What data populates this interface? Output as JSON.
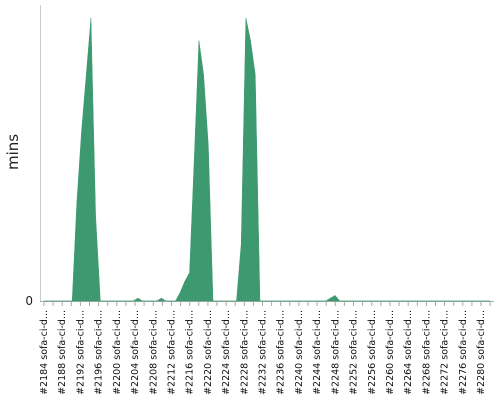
{
  "chart_data": {
    "type": "area",
    "ylabel": "mins",
    "y_tick_labels": [
      "0"
    ],
    "ylim": [
      0,
      100
    ],
    "x_tick_labels": [
      "#2184 sofa-ci-d...",
      "#2188 sofa-ci-d...",
      "#2192 sofa-ci-d...",
      "#2196 sofa-ci-d...",
      "#2200 sofa-ci-d...",
      "#2204 sofa-ci-d...",
      "#2208 sofa-ci-d...",
      "#2212 sofa-ci-d...",
      "#2216 sofa-ci-d...",
      "#2220 sofa-ci-d...",
      "#2224 sofa-ci-d...",
      "#2228 sofa-ci-d...",
      "#2232 sofa-ci-d...",
      "#2236 sofa-ci-d...",
      "#2240 sofa-ci-d...",
      "#2244 sofa-ci-d...",
      "#2248 sofa-ci-d...",
      "#2252 sofa-ci-d...",
      "#2256 sofa-ci-d...",
      "#2260 sofa-ci-d...",
      "#2264 sofa-ci-d...",
      "#2268 sofa-ci-d...",
      "#2272 sofa-ci-d...",
      "#2276 sofa-ci-d...",
      "#2280 sofa-ci-d..."
    ],
    "series": [
      {
        "color": "#3d9970",
        "values": [
          0,
          0,
          0,
          0,
          0,
          0,
          0,
          35,
          60,
          80,
          100,
          30,
          0,
          0,
          0,
          0,
          0,
          0,
          0,
          0,
          1,
          0,
          0,
          0,
          0,
          1,
          0,
          0,
          0,
          3,
          7,
          10,
          50,
          92,
          80,
          55,
          0,
          0,
          0,
          0,
          0,
          0,
          20,
          100,
          92,
          80,
          0,
          0,
          0,
          0,
          0,
          0,
          0,
          0,
          0,
          0,
          0,
          0,
          0,
          0,
          0,
          1,
          2,
          0,
          0,
          0,
          0,
          0,
          0,
          0,
          0,
          0,
          0,
          0,
          0,
          0,
          0,
          0,
          0,
          0,
          0,
          0,
          0,
          0,
          0,
          0,
          0,
          0,
          0,
          0,
          0,
          0,
          0,
          0,
          0,
          0
        ]
      }
    ]
  }
}
